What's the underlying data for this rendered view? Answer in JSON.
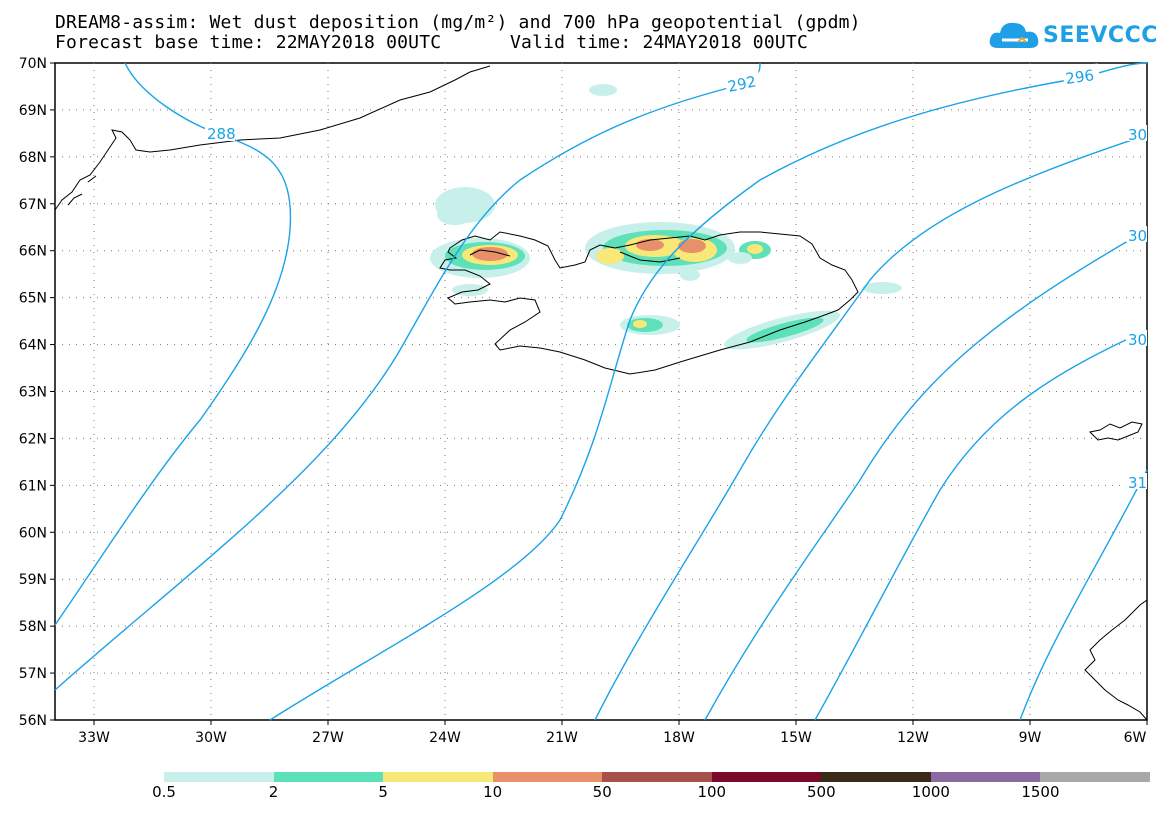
{
  "title": {
    "line1": "DREAM8-assim: Wet dust deposition (mg/m²) and 700 hPa geopotential (gpdm)",
    "line2_left": "Forecast base time: 22MAY2018 00UTC",
    "line2_right": "Valid time: 24MAY2018 00UTC"
  },
  "logo": {
    "text": "SEEVCCC",
    "icon": "cloud-icon"
  },
  "map": {
    "lat_labels": [
      "70N",
      "69N",
      "68N",
      "67N",
      "66N",
      "65N",
      "64N",
      "63N",
      "62N",
      "61N",
      "60N",
      "59N",
      "58N",
      "57N",
      "56N"
    ],
    "lon_labels": [
      "33W",
      "30W",
      "27W",
      "24W",
      "21W",
      "18W",
      "15W",
      "12W",
      "9W",
      "6W"
    ],
    "contour_labels": [
      "288",
      "292",
      "296",
      "30",
      "30",
      "30",
      "31"
    ],
    "contour_color": "#1aa3e8"
  },
  "legend": {
    "thresholds": [
      "0.5",
      "2",
      "5",
      "10",
      "50",
      "100",
      "500",
      "1000",
      "1500"
    ],
    "colors": [
      "#c8f0ea",
      "#5ee0b8",
      "#f8e878",
      "#e8906a",
      "#a8504a",
      "#7a0a2a",
      "#3a2a1a",
      "#8a6aa0",
      "#a8a8a8"
    ]
  }
}
